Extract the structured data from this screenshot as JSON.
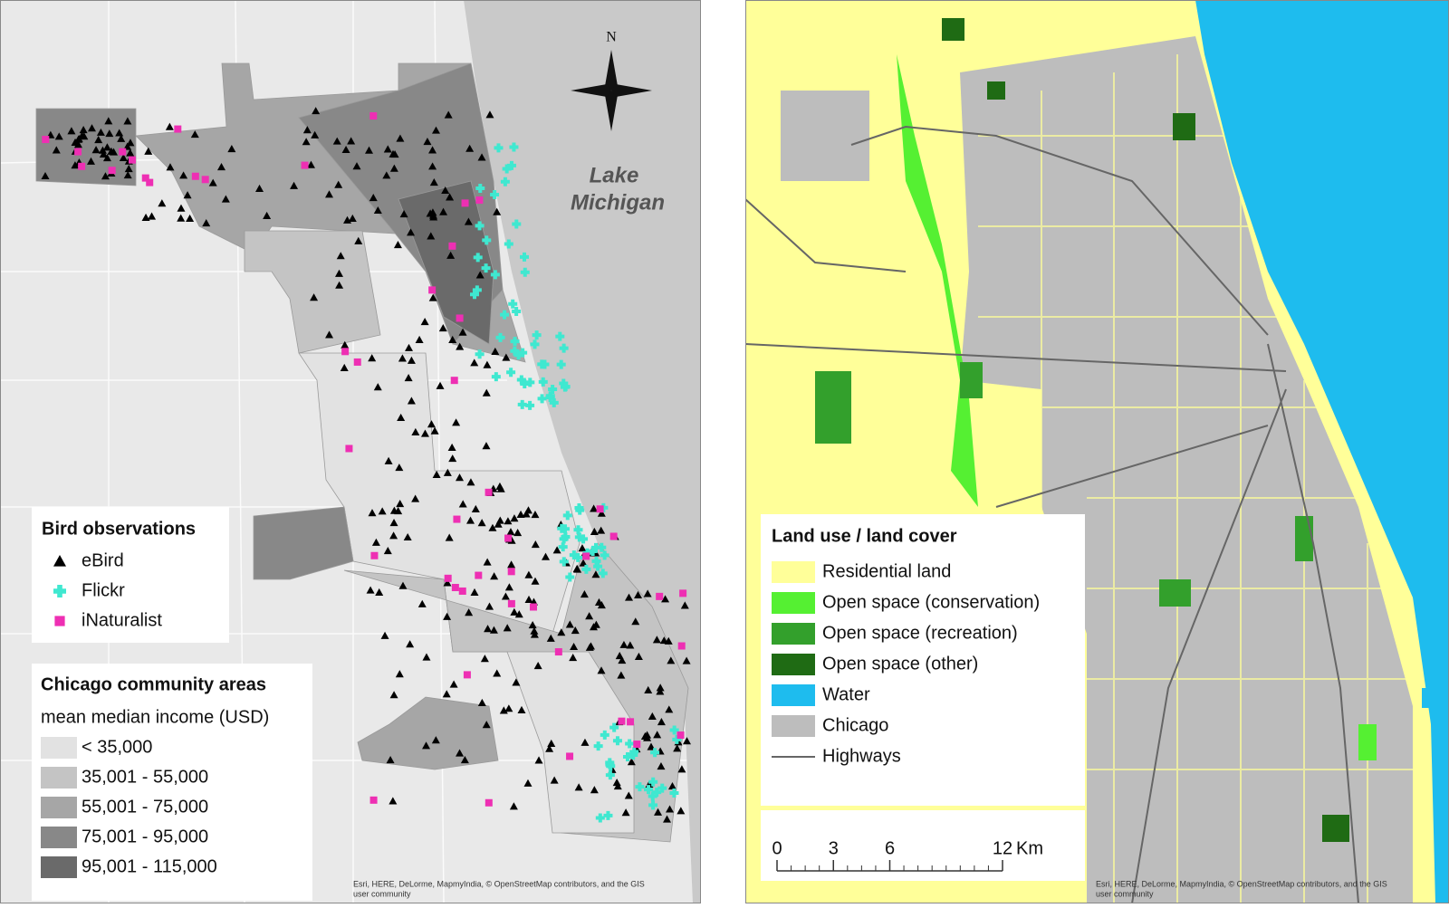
{
  "left_map": {
    "north_label": "N",
    "lake_label": [
      "Lake",
      "Michigan"
    ],
    "bird_legend": {
      "title": "Bird observations",
      "items": [
        {
          "label": "eBird",
          "symbol": "triangle",
          "color": "#000000"
        },
        {
          "label": "Flickr",
          "symbol": "plus",
          "color": "#3fe8d0"
        },
        {
          "label": "iNaturalist",
          "symbol": "square",
          "color": "#ee2fb3"
        }
      ]
    },
    "income_legend": {
      "title": "Chicago community areas",
      "subtitle": "mean median income (USD)",
      "items": [
        {
          "label": "< 35,000",
          "color": "#e2e2e2"
        },
        {
          "label": "35,001 - 55,000",
          "color": "#c4c4c4"
        },
        {
          "label": "55,001 - 75,000",
          "color": "#a6a6a6"
        },
        {
          "label": "75,001 - 95,000",
          "color": "#888888"
        },
        {
          "label": "95,001 - 115,000",
          "color": "#6a6a6a"
        }
      ]
    },
    "attribution": [
      "Esri, HERE, DeLorme, MapmyIndia, © OpenStreetMap contributors, and the GIS",
      "user community"
    ]
  },
  "right_map": {
    "legend": {
      "title": "Land use / land cover",
      "items": [
        {
          "label": "Residential land",
          "color": "#ffff99"
        },
        {
          "label": "Open space (conservation)",
          "color": "#55f032"
        },
        {
          "label": "Open space (recreation)",
          "color": "#33a02c"
        },
        {
          "label": "Open space (other)",
          "color": "#1f6b14"
        },
        {
          "label": "Water",
          "color": "#1ebcee"
        },
        {
          "label": "Chicago",
          "color": "#bdbdbd"
        },
        {
          "label": "Highways",
          "color": "#666666",
          "symbol": "line"
        }
      ]
    },
    "scale_bar": {
      "ticks": [
        0,
        3,
        6,
        12
      ],
      "unit": "Km"
    },
    "attribution": [
      "Esri, HERE, DeLorme, MapmyIndia, © OpenStreetMap contributors, and the GIS",
      "user community"
    ]
  }
}
